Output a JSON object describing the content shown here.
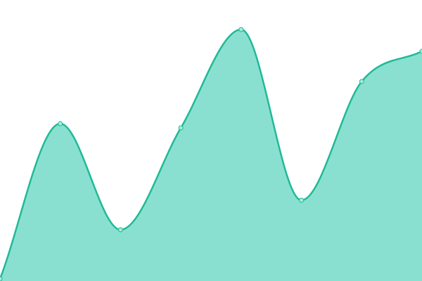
{
  "chart_data": {
    "type": "area",
    "x": [
      0,
      1,
      2,
      3,
      4,
      5,
      6,
      7
    ],
    "values": [
      3,
      224,
      73,
      218,
      358,
      115,
      284,
      327
    ],
    "ylim": [
      0,
      400
    ],
    "grid": false,
    "axes": false,
    "smooth": true,
    "colors": {
      "line": "#1fba96",
      "fill": "#8ae0d0",
      "point_fill": "#a8ecdd"
    }
  }
}
